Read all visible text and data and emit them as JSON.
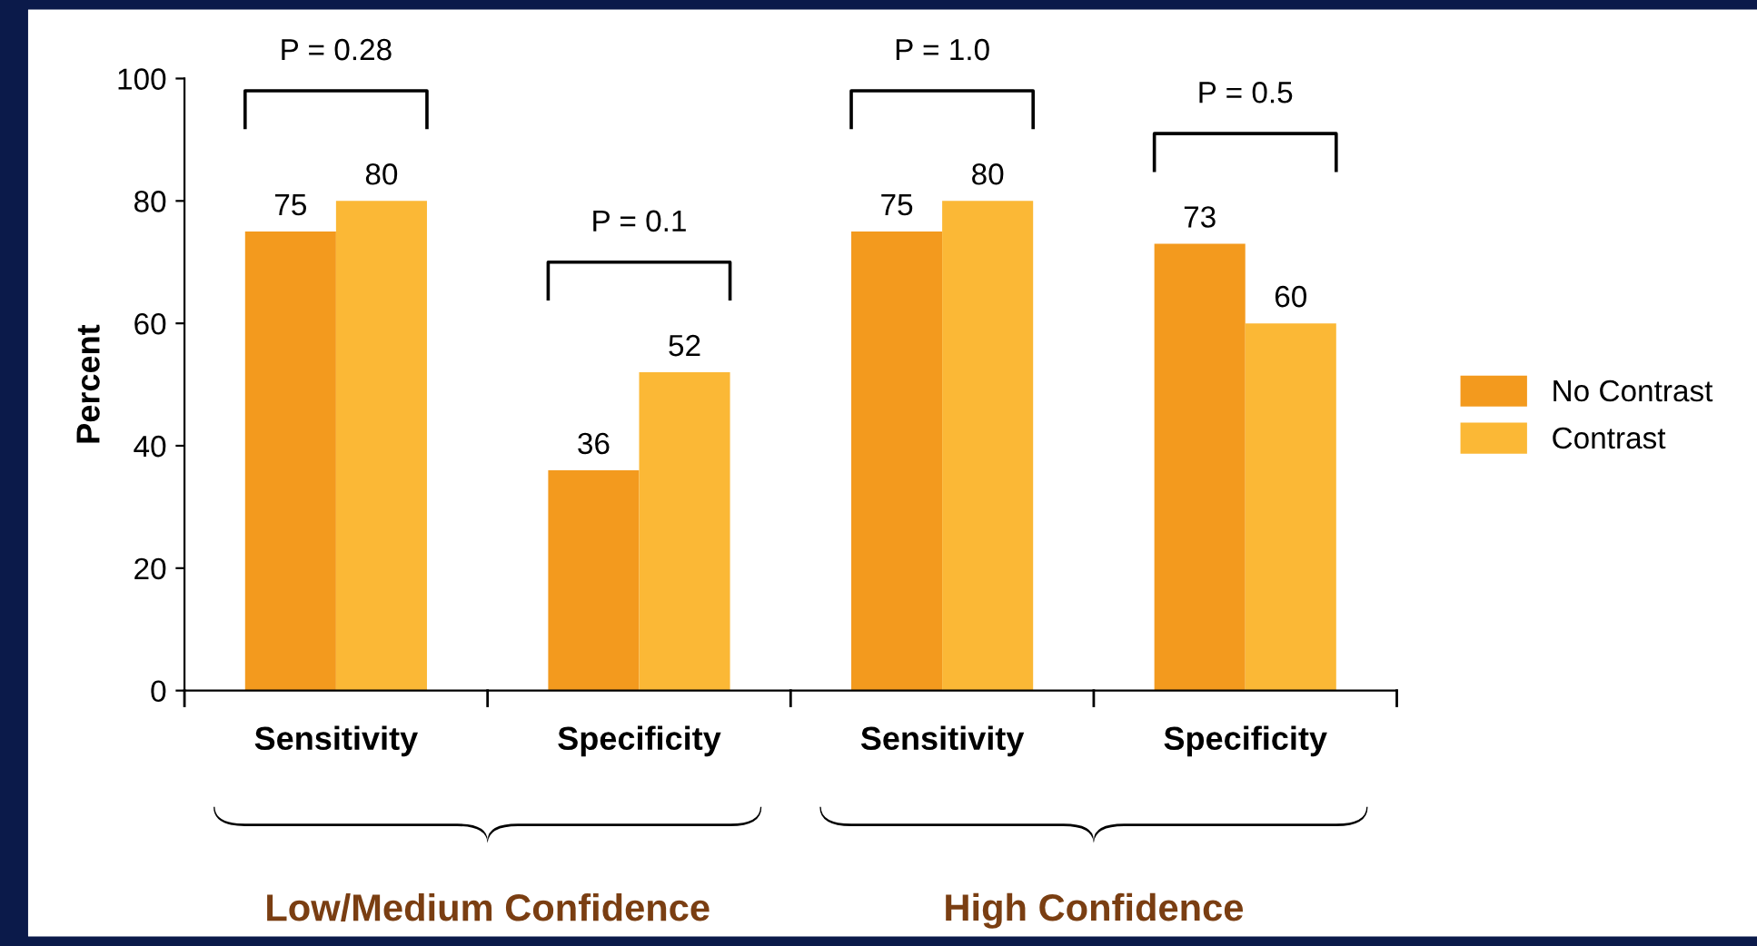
{
  "chart_data": {
    "type": "bar",
    "categories": [
      "Sensitivity",
      "Specificity",
      "Sensitivity",
      "Specificity"
    ],
    "series": [
      {
        "name": "No Contrast",
        "color": "#f39a1e",
        "values": [
          75,
          36,
          75,
          73
        ]
      },
      {
        "name": "Contrast",
        "color": "#fbb836",
        "values": [
          80,
          52,
          80,
          60
        ]
      }
    ],
    "ylabel": "Percent",
    "ylim": [
      0,
      100
    ],
    "yticks": [
      0,
      20,
      40,
      60,
      80,
      100
    ],
    "data_labels": true,
    "legend": "right",
    "grid": false,
    "annotations": [
      "P = 0.28",
      "P = 0.1",
      "P = 1.0",
      "P = 0.5",
      "Low/Medium Confidence",
      "High Confidence"
    ]
  }
}
